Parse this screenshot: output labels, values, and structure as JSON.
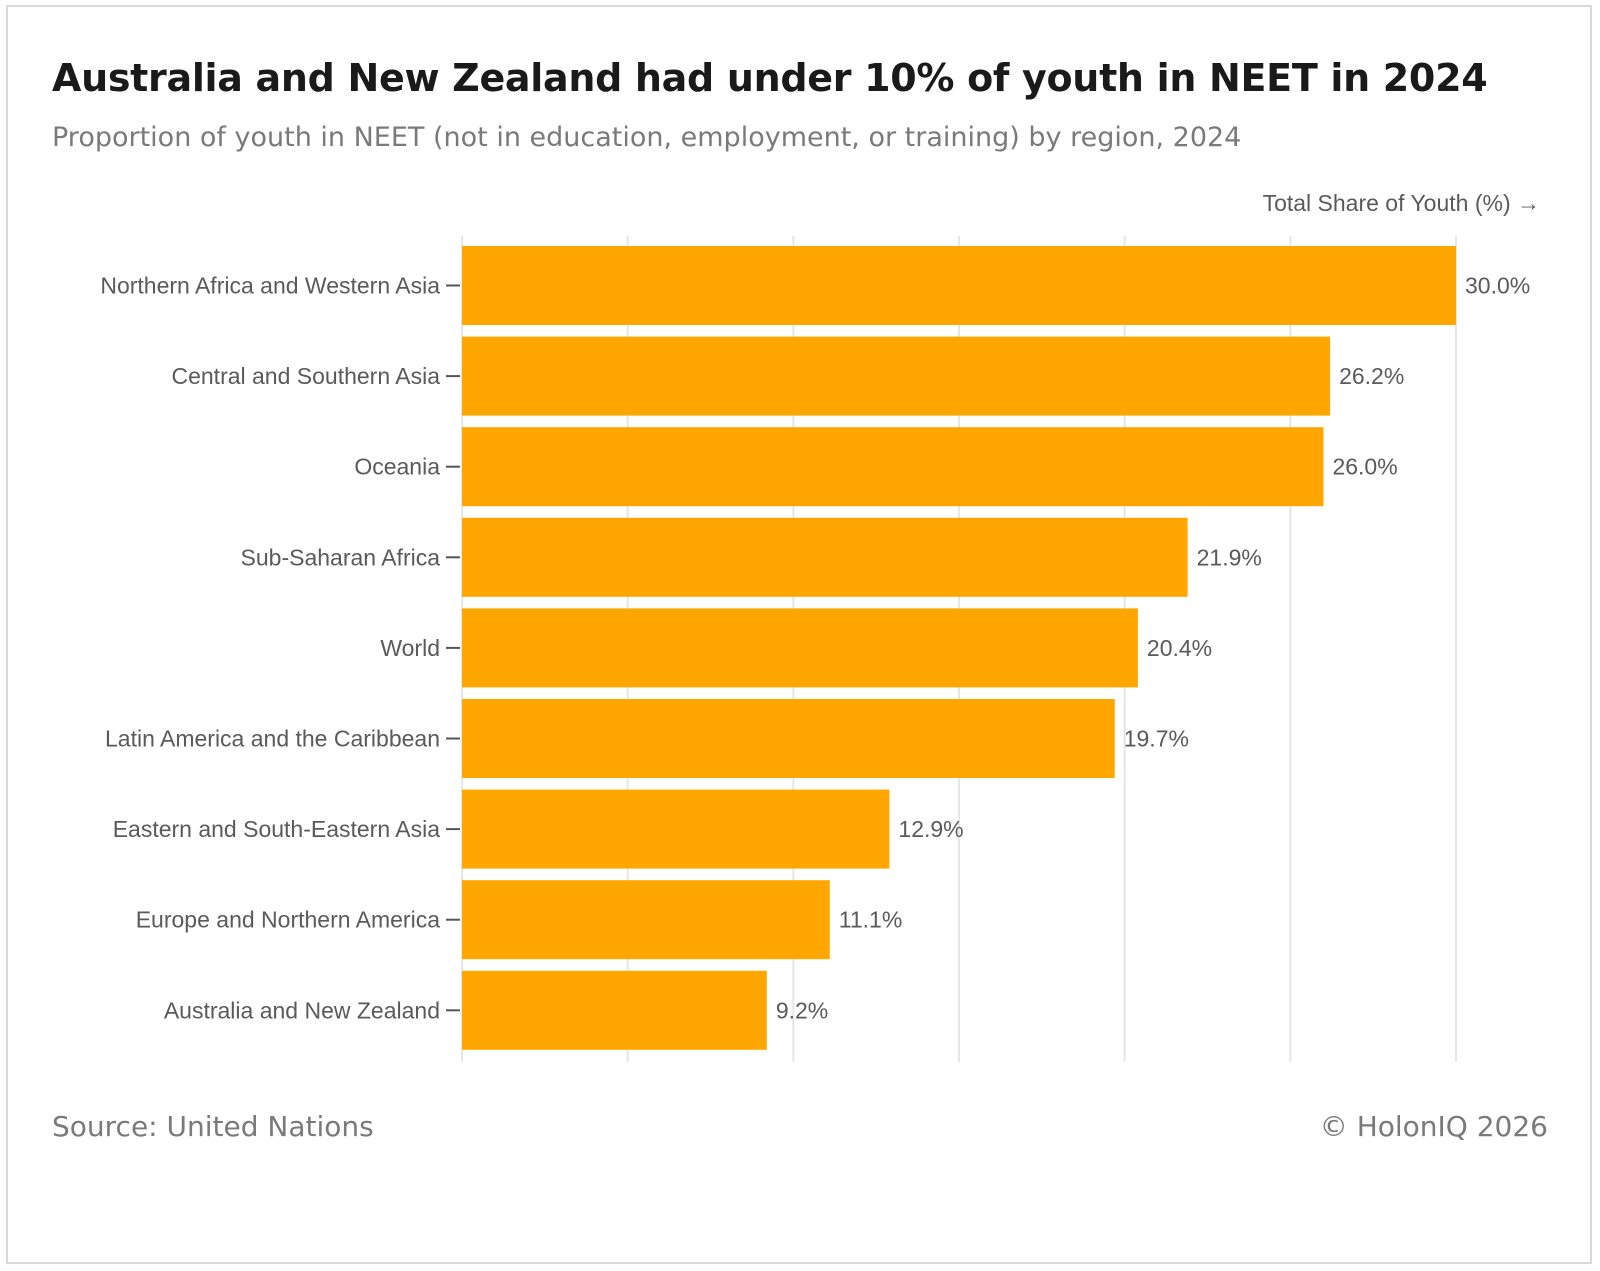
{
  "header": {
    "title": "Australia and New Zealand had under 10% of youth in NEET in 2024",
    "subtitle": "Proportion of youth in NEET (not in education, employment, or training) by region, 2024"
  },
  "footer": {
    "source": "Source: United Nations",
    "copyright": "© HolonIQ 2026"
  },
  "colors": {
    "bar": "#ffa600",
    "grid": "#e6e6e6",
    "text": "#5a5a5a"
  },
  "chart_data": {
    "type": "bar",
    "orientation": "horizontal",
    "title": "Australia and New Zealand had under 10% of youth in NEET in 2024",
    "subtitle": "Proportion of youth in NEET (not in education, employment, or training) by region, 2024",
    "xlabel": "Total Share of Youth (%) →",
    "ylabel": "",
    "xlim": [
      0,
      30
    ],
    "grid": true,
    "categories": [
      "Northern Africa and Western Asia",
      "Central and Southern Asia",
      "Oceania",
      "Sub-Saharan Africa",
      "World",
      "Latin America and the Caribbean",
      "Eastern and South-Eastern Asia",
      "Europe and Northern America",
      "Australia and New Zealand"
    ],
    "values": [
      30.0,
      26.2,
      26.0,
      21.9,
      20.4,
      19.7,
      12.9,
      11.1,
      9.2
    ],
    "value_labels": [
      "30.0%",
      "26.2%",
      "26.0%",
      "21.9%",
      "20.4%",
      "19.7%",
      "12.9%",
      "11.1%",
      "9.2%"
    ]
  }
}
